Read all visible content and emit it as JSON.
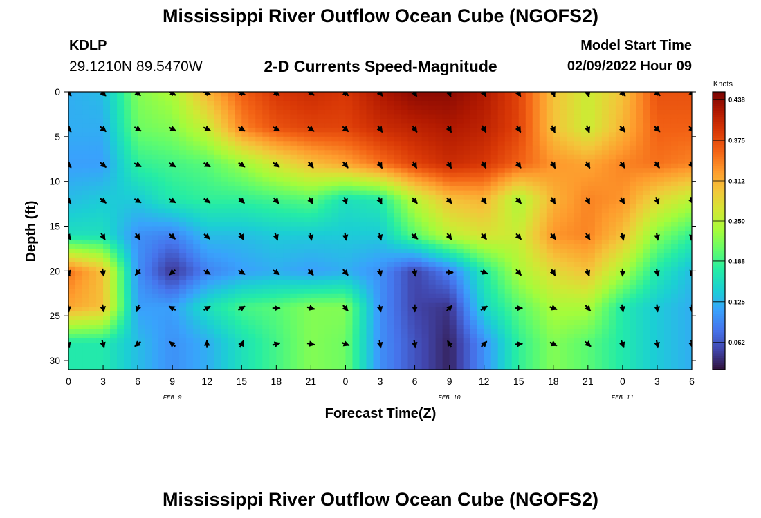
{
  "header": {
    "title": "Mississippi River Outflow Ocean Cube (NGOFS2)",
    "station": "KDLP",
    "coords": "29.1210N  89.5470W",
    "subtitle": "2-D Currents Speed-Magnitude",
    "model_label": "Model Start Time",
    "model_time": "02/09/2022 Hour 09"
  },
  "footer": {
    "title": "Mississippi River Outflow Ocean Cube (NGOFS2)"
  },
  "chart_data": {
    "type": "heatmap",
    "title": "2-D Currents Speed-Magnitude",
    "xlabel": "Forecast Time(Z)",
    "ylabel": "Depth (ft)",
    "x_ticks": [
      "0",
      "3",
      "6",
      "9",
      "12",
      "15",
      "18",
      "21",
      "0",
      "3",
      "6",
      "9",
      "12",
      "15",
      "18",
      "21",
      "0",
      "3",
      "6"
    ],
    "x_hours": [
      0,
      3,
      6,
      9,
      12,
      15,
      18,
      21,
      24,
      27,
      30,
      33,
      36,
      39,
      42,
      45,
      48,
      51,
      54
    ],
    "date_labels": [
      {
        "label": "FEB 9",
        "hour": 9
      },
      {
        "label": "FEB 10",
        "hour": 33
      },
      {
        "label": "FEB 11",
        "hour": 48
      }
    ],
    "y_ticks": [
      0,
      5,
      10,
      15,
      20,
      25,
      30
    ],
    "xlim": [
      0,
      54
    ],
    "ylim": [
      0,
      31
    ],
    "colorbar": {
      "unit": "Knots",
      "min": 0.02,
      "max": 0.45,
      "ticks": [
        "0.438",
        "0.375",
        "0.312",
        "0.250",
        "0.188",
        "0.125",
        "0.062"
      ],
      "tick_values": [
        0.438,
        0.375,
        0.312,
        0.25,
        0.188,
        0.125,
        0.062
      ],
      "colors": [
        "#30123b",
        "#4145ab",
        "#4675ed",
        "#39a2fc",
        "#1bcfd4",
        "#24eca6",
        "#61fc6c",
        "#a4fc3b",
        "#d1e834",
        "#f3c63a",
        "#fe9b2d",
        "#f36315",
        "#d93806",
        "#b11901",
        "#7a0403"
      ]
    },
    "vector_depths": [
      0,
      4,
      8,
      12,
      16,
      20,
      24,
      28
    ],
    "vector_hours": [
      0,
      3,
      6,
      9,
      12,
      15,
      18,
      21,
      24,
      27,
      30,
      33,
      36,
      39,
      42,
      45,
      48,
      51,
      54
    ],
    "speed_grid_depths": [
      0,
      4,
      8,
      12,
      16,
      20,
      24,
      28
    ],
    "speed_grid": [
      [
        0.12,
        0.13,
        0.22,
        0.24,
        0.31,
        0.36,
        0.39,
        0.4,
        0.39,
        0.42,
        0.44,
        0.44,
        0.42,
        0.38,
        0.3,
        0.26,
        0.3,
        0.37,
        0.37
      ],
      [
        0.12,
        0.12,
        0.21,
        0.22,
        0.26,
        0.34,
        0.37,
        0.38,
        0.38,
        0.4,
        0.41,
        0.42,
        0.41,
        0.38,
        0.3,
        0.26,
        0.31,
        0.36,
        0.36
      ],
      [
        0.11,
        0.11,
        0.18,
        0.19,
        0.2,
        0.23,
        0.27,
        0.3,
        0.32,
        0.35,
        0.38,
        0.4,
        0.39,
        0.36,
        0.33,
        0.32,
        0.34,
        0.35,
        0.34
      ],
      [
        0.13,
        0.14,
        0.14,
        0.17,
        0.18,
        0.18,
        0.19,
        0.2,
        0.16,
        0.17,
        0.25,
        0.3,
        0.31,
        0.24,
        0.31,
        0.34,
        0.33,
        0.28,
        0.25
      ],
      [
        0.16,
        0.16,
        0.1,
        0.09,
        0.13,
        0.13,
        0.14,
        0.14,
        0.14,
        0.14,
        0.2,
        0.25,
        0.27,
        0.26,
        0.33,
        0.34,
        0.3,
        0.22,
        0.18
      ],
      [
        0.35,
        0.3,
        0.1,
        0.04,
        0.09,
        0.11,
        0.12,
        0.11,
        0.12,
        0.1,
        0.05,
        0.09,
        0.17,
        0.24,
        0.28,
        0.3,
        0.24,
        0.17,
        0.13
      ],
      [
        0.32,
        0.3,
        0.11,
        0.11,
        0.16,
        0.19,
        0.2,
        0.22,
        0.22,
        0.1,
        0.05,
        0.04,
        0.15,
        0.2,
        0.24,
        0.24,
        0.17,
        0.14,
        0.12
      ],
      [
        0.17,
        0.17,
        0.13,
        0.1,
        0.12,
        0.16,
        0.19,
        0.22,
        0.21,
        0.1,
        0.06,
        0.03,
        0.1,
        0.18,
        0.22,
        0.2,
        0.17,
        0.14,
        0.12
      ]
    ],
    "direction_grid_deg": [
      [
        135,
        135,
        130,
        120,
        115,
        115,
        125,
        120,
        130,
        140,
        150,
        160,
        150,
        150,
        160,
        165,
        135,
        130,
        135
      ],
      [
        135,
        130,
        120,
        115,
        115,
        120,
        120,
        125,
        130,
        145,
        145,
        150,
        150,
        150,
        155,
        160,
        140,
        135,
        135
      ],
      [
        135,
        130,
        115,
        120,
        120,
        125,
        125,
        140,
        140,
        150,
        150,
        150,
        150,
        145,
        150,
        150,
        145,
        145,
        150
      ],
      [
        140,
        130,
        120,
        120,
        125,
        135,
        140,
        150,
        160,
        155,
        140,
        140,
        145,
        140,
        150,
        155,
        150,
        160,
        160
      ],
      [
        145,
        150,
        145,
        130,
        130,
        150,
        160,
        170,
        170,
        165,
        130,
        145,
        140,
        140,
        140,
        150,
        165,
        170,
        190
      ],
      [
        160,
        170,
        220,
        230,
        120,
        120,
        125,
        140,
        140,
        170,
        170,
        90,
        110,
        140,
        150,
        160,
        180,
        170,
        200
      ],
      [
        175,
        170,
        200,
        300,
        60,
        60,
        90,
        105,
        140,
        170,
        180,
        45,
        60,
        90,
        110,
        140,
        170,
        175,
        180
      ],
      [
        165,
        165,
        230,
        310,
        0,
        30,
        75,
        100,
        110,
        170,
        170,
        330,
        45,
        85,
        115,
        130,
        160,
        170,
        170
      ]
    ]
  }
}
